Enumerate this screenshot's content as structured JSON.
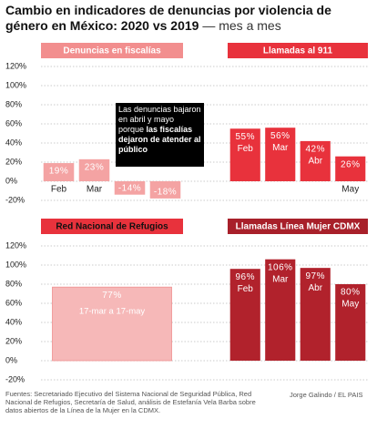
{
  "title": "Cambio en indicadores de denuncias por violencia de género en México: 2020 vs 2019",
  "subtitle": "— mes a mes",
  "source": "Fuentes: Secretariado Ejecutivo del Sistema Nacional de Seguridad Pública, Red Nacional de Refugios, Secretaría de Salud, análisis de Estefanía Vela Barba sobre datos abiertos de la Línea de la Mujer en la CDMX.",
  "credit": "Jorge Galindo / EL PAIS",
  "chart_data": [
    {
      "type": "bar",
      "title": "Denuncias en fiscalías",
      "categories": [
        "Feb",
        "Mar",
        null,
        null
      ],
      "values": [
        19,
        23,
        -14,
        -18
      ],
      "value_labels": [
        "19%",
        "23%",
        "-14%",
        "-18%"
      ],
      "color": "#f4a3a3",
      "ylim": [
        -20,
        120
      ],
      "yticks": [
        {
          "value": 120,
          "label": "120%"
        },
        {
          "value": 100,
          "label": "100%"
        },
        {
          "value": 80,
          "label": "80%"
        },
        {
          "value": 60,
          "label": "60%"
        },
        {
          "value": 40,
          "label": "40%"
        },
        {
          "value": 20,
          "label": "20%"
        },
        {
          "value": 0,
          "label": "0%"
        },
        {
          "value": -20,
          "label": "-20%"
        }
      ],
      "annotation": {
        "text": "Las denuncias bajaron en abril y mayo porque",
        "bold": "las fiscalías dejaron de atender al público"
      }
    },
    {
      "type": "bar",
      "title": "Llamadas al 911",
      "categories": [
        "Feb",
        "Mar",
        "Abr",
        "May"
      ],
      "values": [
        55,
        56,
        42,
        26
      ],
      "value_labels": [
        "55%",
        "56%",
        "42%",
        "26%"
      ],
      "color": "#e8323c",
      "ylim": [
        -20,
        120
      ]
    },
    {
      "type": "bar",
      "title": "Red Nacional de Refugios",
      "categories": [
        "17-mar a 17-may"
      ],
      "values": [
        77
      ],
      "value_labels": [
        "77%"
      ],
      "color": "#f6b8b8",
      "ylim": [
        -20,
        120
      ],
      "yticks": [
        {
          "value": 120,
          "label": "120%"
        },
        {
          "value": 100,
          "label": "100%"
        },
        {
          "value": 80,
          "label": "80%"
        },
        {
          "value": 60,
          "label": "60%"
        },
        {
          "value": 40,
          "label": "40%"
        },
        {
          "value": 20,
          "label": "20%"
        },
        {
          "value": 0,
          "label": "0%"
        },
        {
          "value": -20,
          "label": "-20%"
        }
      ]
    },
    {
      "type": "bar",
      "title": "Llamadas Línea Mujer CDMX",
      "categories": [
        "Feb",
        "Mar",
        "Abr",
        "May"
      ],
      "values": [
        96,
        106,
        97,
        80
      ],
      "value_labels": [
        "96%",
        "106%",
        "97%",
        "80%"
      ],
      "color": "#b1222c",
      "ylim": [
        -20,
        120
      ]
    }
  ]
}
